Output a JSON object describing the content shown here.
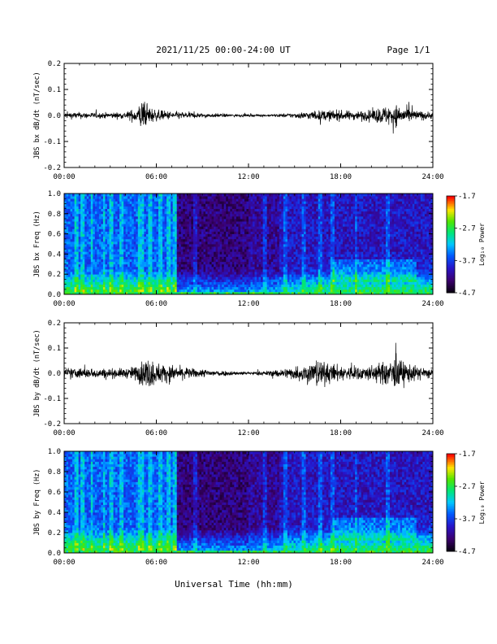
{
  "header": {
    "title": "2021/11/25  00:00-24:00 UT",
    "page": "Page 1/1"
  },
  "chart_data": [
    {
      "type": "line",
      "ylabel": "JBS bx dB/dt (nT/sec)",
      "xticks": [
        "00:00",
        "06:00",
        "12:00",
        "18:00",
        "24:00"
      ],
      "yticks": [
        "0.2",
        "0.1",
        "0.0",
        "-0.1",
        "-0.2"
      ],
      "ylim": [
        -0.2,
        0.2
      ],
      "xlim_hours": [
        0,
        24
      ],
      "envelope": {
        "hours": [
          0,
          1,
          2,
          3,
          4,
          4.8,
          5.0,
          5.3,
          6,
          7,
          8,
          9,
          10,
          11,
          12,
          13,
          14,
          15,
          16,
          17,
          18,
          19,
          20,
          20.5,
          21.5,
          22.5,
          23,
          24
        ],
        "amplitude": [
          0.012,
          0.012,
          0.01,
          0.011,
          0.012,
          0.03,
          0.06,
          0.04,
          0.02,
          0.015,
          0.012,
          0.008,
          0.007,
          0.005,
          0.004,
          0.004,
          0.006,
          0.01,
          0.015,
          0.02,
          0.018,
          0.016,
          0.02,
          0.03,
          0.04,
          0.025,
          0.018,
          0.012
        ]
      }
    },
    {
      "type": "heatmap",
      "ylabel": "JBS bx Freq (Hz)",
      "xticks": [
        "00:00",
        "06:00",
        "12:00",
        "18:00",
        "24:00"
      ],
      "yticks": [
        "1.0",
        "0.8",
        "0.6",
        "0.4",
        "0.2",
        "0.0"
      ],
      "ylim": [
        0.0,
        1.0
      ],
      "xlim_hours": [
        0,
        24
      ],
      "colorbar": {
        "label": "Log₁₀ Power",
        "ticks": [
          "-1.7",
          "-2.7",
          "-3.7",
          "-4.7"
        ],
        "range": [
          -4.7,
          -1.7
        ]
      }
    },
    {
      "type": "line",
      "ylabel": "JBS by dB/dt (nT/sec)",
      "xticks": [
        "00:00",
        "06:00",
        "12:00",
        "18:00",
        "24:00"
      ],
      "yticks": [
        "0.2",
        "0.1",
        "0.0",
        "-0.1",
        "-0.2"
      ],
      "ylim": [
        -0.2,
        0.2
      ],
      "xlim_hours": [
        0,
        24
      ],
      "envelope": {
        "hours": [
          0,
          1,
          2,
          3,
          4,
          4.8,
          5.0,
          5.5,
          6,
          6.5,
          7,
          8,
          9,
          10,
          11,
          12,
          13,
          14,
          15,
          16,
          16.5,
          17,
          18,
          19,
          20,
          21,
          21.5,
          22.5,
          23,
          24
        ],
        "amplitude": [
          0.02,
          0.02,
          0.018,
          0.018,
          0.018,
          0.03,
          0.045,
          0.06,
          0.04,
          0.035,
          0.03,
          0.02,
          0.015,
          0.012,
          0.008,
          0.006,
          0.008,
          0.015,
          0.025,
          0.04,
          0.055,
          0.04,
          0.03,
          0.025,
          0.03,
          0.045,
          0.06,
          0.035,
          0.025,
          0.02
        ]
      }
    },
    {
      "type": "heatmap",
      "ylabel": "JBS by Freq (Hz)",
      "xticks": [
        "00:00",
        "06:00",
        "12:00",
        "18:00",
        "24:00"
      ],
      "yticks": [
        "1.0",
        "0.8",
        "0.6",
        "0.4",
        "0.2",
        "0.0"
      ],
      "ylim": [
        0.0,
        1.0
      ],
      "xlim_hours": [
        0,
        24
      ],
      "colorbar": {
        "label": "Log₁₀ Power",
        "ticks": [
          "-1.7",
          "-2.7",
          "-3.7",
          "-4.7"
        ],
        "range": [
          -4.7,
          -1.7
        ]
      }
    }
  ],
  "xaxis_title": "Universal Time (hh:mm)"
}
